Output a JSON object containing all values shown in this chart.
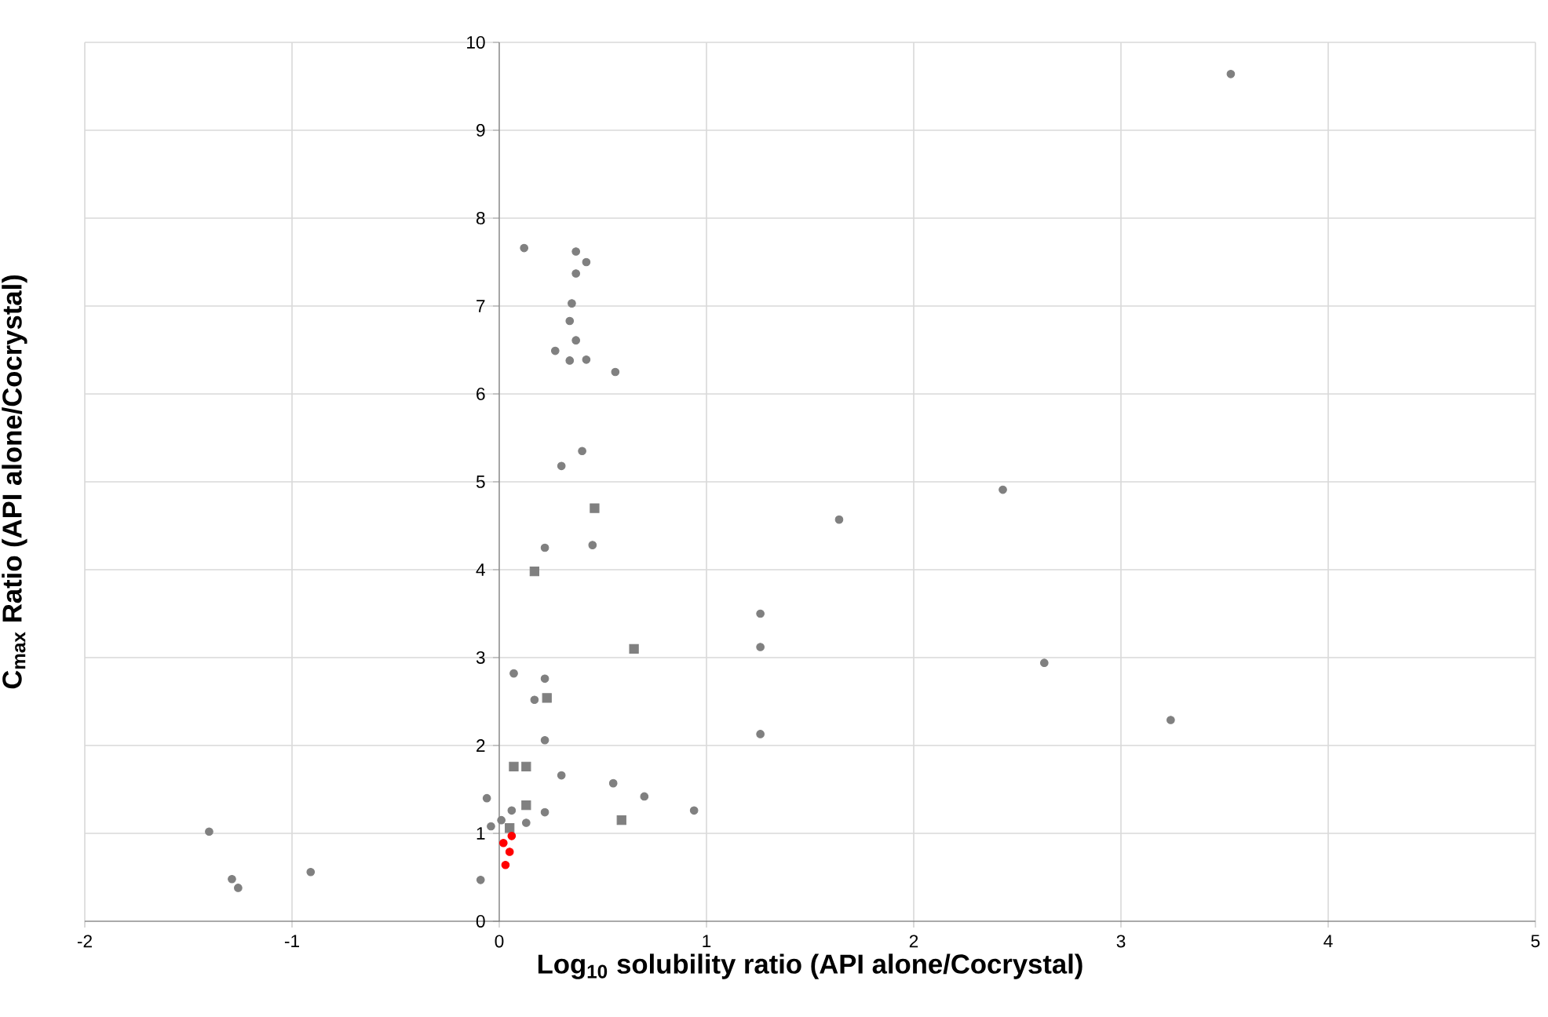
{
  "chart_data": {
    "type": "scatter",
    "xlabel": "Log$_{10}$ solubility ratio (API alone/Cocrystal)",
    "ylabel": "C$_{max}$ Ratio (API alone/Cocrystal)",
    "xlim": [
      -2,
      5
    ],
    "ylim": [
      0,
      10
    ],
    "xticks": [
      -2,
      -1,
      0,
      1,
      2,
      3,
      4,
      5
    ],
    "yticks": [
      0,
      1,
      2,
      3,
      4,
      5,
      6,
      7,
      8,
      9,
      10
    ],
    "grid": true,
    "series": [
      {
        "color": "#808080",
        "marker": "circle",
        "x": [
          0.12,
          0.37,
          0.42,
          0.37,
          0.35,
          0.34,
          0.37,
          0.27,
          0.34,
          0.42,
          0.56,
          0.4,
          0.3,
          1.64,
          0.22,
          0.45,
          1.26,
          1.26,
          1.26,
          0.07,
          0.22,
          0.17,
          0.22,
          0.3,
          0.55,
          0.7,
          0.94,
          -0.06,
          0.22,
          0.06,
          -0.04,
          0.01,
          0.13,
          -0.09,
          -1.4,
          -1.29,
          -1.26,
          -0.91,
          2.43,
          2.63,
          3.24,
          3.53
        ],
        "values": [
          7.66,
          7.62,
          7.5,
          7.37,
          7.03,
          6.83,
          6.61,
          6.49,
          6.38,
          6.39,
          6.25,
          5.35,
          5.18,
          4.57,
          4.25,
          4.28,
          3.5,
          3.12,
          2.13,
          2.82,
          2.76,
          2.52,
          2.06,
          1.66,
          1.57,
          1.42,
          1.26,
          1.4,
          1.24,
          1.26,
          1.08,
          1.15,
          1.12,
          0.47,
          1.02,
          0.48,
          0.38,
          0.56,
          4.91,
          2.94,
          2.29,
          9.64
        ]
      },
      {
        "color": "#808080",
        "marker": "square",
        "x": [
          0.46,
          0.17,
          0.65,
          0.23,
          0.07,
          0.13,
          0.13,
          0.59,
          0.05
        ],
        "values": [
          4.7,
          3.98,
          3.1,
          2.54,
          1.76,
          1.76,
          1.32,
          1.15,
          1.06
        ]
      },
      {
        "color": "#ff0000",
        "marker": "circle",
        "x": [
          0.06,
          0.02,
          0.05,
          0.03
        ],
        "values": [
          0.97,
          0.89,
          0.79,
          0.64
        ]
      }
    ]
  }
}
